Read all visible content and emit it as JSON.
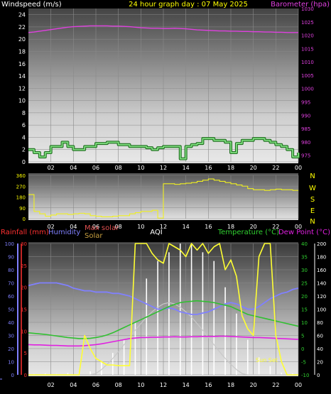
{
  "header": {
    "left_label": "Windspeed (m/s)",
    "title": "24 hour graph day : 07 May 2025",
    "right_label": "Barometer (hpa)"
  },
  "colors": {
    "wind": "#7ddc7d",
    "barometer": "#e040e0",
    "direction": "#f0f020",
    "rain": "#ff3030",
    "humidity": "#8080ff",
    "max_solar": "#c8c8c8",
    "solar": "#ffff33",
    "temperature": "#30c030",
    "dew_point": "#e020e0",
    "uv": "#ffffff",
    "title": "#ffff00"
  },
  "chart_data": [
    {
      "type": "line",
      "name": "wind-barometer",
      "x_ticks": [
        "02",
        "04",
        "06",
        "08",
        "10",
        "12",
        "14",
        "16",
        "18",
        "20",
        "22",
        "00"
      ],
      "y_left": {
        "label": "Windspeed (m/s)",
        "range": [
          0,
          25
        ],
        "ticks": [
          0,
          2,
          4,
          6,
          8,
          10,
          12,
          14,
          16,
          18,
          20,
          22,
          24
        ]
      },
      "y_right": {
        "label": "Barometer (hpa)",
        "range": [
          972.5,
          1030
        ],
        "ticks": [
          975,
          980,
          985,
          990,
          995,
          1000,
          1005,
          1010,
          1015,
          1020,
          1025,
          1030
        ]
      },
      "series": [
        {
          "name": "Windspeed",
          "axis": "left",
          "color_key": "wind",
          "values": [
            2.0,
            1.5,
            0.8,
            1.5,
            2.5,
            2.5,
            3.2,
            2.5,
            2.0,
            2.0,
            2.5,
            2.5,
            3.0,
            3.0,
            3.2,
            3.2,
            2.8,
            2.8,
            2.5,
            2.5,
            2.5,
            2.3,
            2.0,
            2.3,
            2.5,
            2.5,
            2.5,
            0.5,
            2.5,
            2.8,
            3.0,
            3.8,
            3.8,
            3.5,
            3.5,
            3.2,
            1.5,
            3.0,
            3.5,
            3.5,
            3.8,
            3.8,
            3.5,
            3.2,
            2.8,
            2.5,
            2.0,
            0.8,
            1.5
          ]
        },
        {
          "name": "Barometer",
          "axis": "right",
          "color_key": "barometer",
          "values": [
            1021.0,
            1021.2,
            1021.5,
            1021.8,
            1022.1,
            1022.4,
            1022.7,
            1023.0,
            1023.2,
            1023.3,
            1023.4,
            1023.5,
            1023.5,
            1023.5,
            1023.5,
            1023.4,
            1023.4,
            1023.3,
            1023.2,
            1023.0,
            1022.8,
            1022.7,
            1022.6,
            1022.6,
            1022.5,
            1022.5,
            1022.6,
            1022.5,
            1022.4,
            1022.2,
            1022.0,
            1021.9,
            1021.8,
            1021.7,
            1021.6,
            1021.6,
            1021.5,
            1021.5,
            1021.4,
            1021.4,
            1021.3,
            1021.3,
            1021.2,
            1021.2,
            1021.1,
            1021.1,
            1021.0,
            1021.0,
            1021.0
          ]
        }
      ]
    },
    {
      "type": "line",
      "name": "wind-direction",
      "x_ticks": [
        "02",
        "04",
        "06",
        "08",
        "10",
        "12",
        "14",
        "16",
        "18",
        "20",
        "22",
        "00"
      ],
      "y_left": {
        "range": [
          0,
          360
        ],
        "ticks": [
          0,
          90,
          180,
          270,
          360
        ]
      },
      "right_axis_labels": [
        "N",
        "W",
        "S",
        "E",
        "N"
      ],
      "series": [
        {
          "name": "Wind direction",
          "axis": "left",
          "color_key": "direction",
          "values": [
            200,
            60,
            40,
            20,
            30,
            40,
            40,
            35,
            40,
            45,
            40,
            25,
            20,
            15,
            15,
            20,
            25,
            25,
            40,
            50,
            60,
            60,
            70,
            5,
            290,
            290,
            285,
            290,
            295,
            300,
            310,
            320,
            330,
            320,
            310,
            300,
            290,
            280,
            270,
            250,
            240,
            240,
            235,
            240,
            245,
            240,
            240,
            235,
            235
          ]
        }
      ]
    },
    {
      "type": "line",
      "name": "rain-humidity-solar-temp",
      "legend": [
        "Rainfall (mm)",
        "Humidity",
        "Max solar",
        "Solar",
        "AQI",
        "Temperature (°C)",
        "Dew Point (°C)"
      ],
      "x_ticks": [
        "02",
        "04",
        "06",
        "08",
        "10",
        "12",
        "14",
        "16",
        "18",
        "20",
        "22",
        "00"
      ],
      "y_rain": {
        "label": "Rainfall (mm)",
        "range": [
          0,
          30
        ],
        "ticks": [
          0,
          5,
          10,
          15,
          20,
          25,
          30
        ]
      },
      "y_humidity": {
        "label": "Humidity",
        "range": [
          0,
          100
        ],
        "ticks": [
          0,
          10,
          20,
          30,
          40,
          50,
          60,
          70,
          80,
          90,
          100
        ]
      },
      "y_temp": {
        "label": "Temperature (°C)",
        "range": [
          -10,
          40
        ],
        "ticks": [
          -10,
          -5,
          0,
          5,
          10,
          15,
          20,
          25,
          30,
          35,
          40
        ]
      },
      "y_solar": {
        "range": [
          0,
          200
        ],
        "ticks": [
          0,
          20,
          40,
          60,
          80,
          100,
          120,
          140,
          160,
          180,
          200
        ]
      },
      "annotation": "Sun Set",
      "series": [
        {
          "name": "Humidity",
          "axis": "humidity",
          "color_key": "humidity",
          "values": [
            68,
            69,
            70,
            70,
            70,
            70,
            69,
            68,
            66,
            65,
            64,
            64,
            63,
            63,
            63,
            62,
            62,
            61,
            60,
            58,
            56,
            54,
            52,
            50,
            50,
            51,
            50,
            48,
            47,
            46,
            46,
            47,
            48,
            50,
            52,
            54,
            55,
            54,
            52,
            50,
            50,
            52,
            55,
            58,
            60,
            62,
            63,
            65,
            66
          ]
        },
        {
          "name": "Temperature",
          "axis": "temp",
          "color_key": "temperature",
          "values": [
            6,
            5.8,
            5.6,
            5.4,
            5.1,
            4.8,
            4.5,
            4.2,
            4.0,
            3.8,
            3.8,
            3.9,
            4.2,
            4.6,
            5.2,
            6.0,
            7.0,
            8.0,
            9.0,
            10.0,
            11.0,
            12.0,
            13.0,
            14.0,
            15.0,
            16.0,
            16.8,
            17.5,
            17.8,
            18.0,
            18.2,
            18.0,
            17.8,
            17.5,
            17.0,
            16.5,
            16.0,
            15.0,
            14.0,
            13.0,
            12.5,
            12.0,
            11.5,
            11.0,
            10.5,
            10.0,
            9.5,
            9.0,
            8.5
          ]
        },
        {
          "name": "Dew Point",
          "axis": "temp",
          "color_key": "dew_point",
          "values": [
            1.5,
            1.4,
            1.4,
            1.3,
            1.2,
            1.2,
            1.1,
            1.0,
            1.0,
            1.0,
            1.1,
            1.3,
            1.5,
            1.8,
            2.2,
            2.6,
            3.0,
            3.4,
            3.8,
            4.0,
            4.2,
            4.2,
            4.3,
            4.3,
            4.4,
            4.4,
            4.5,
            4.4,
            4.4,
            4.5,
            4.5,
            4.6,
            4.6,
            4.6,
            4.7,
            4.7,
            4.6,
            4.5,
            4.4,
            4.3,
            4.2,
            4.2,
            4.1,
            4.0,
            3.9,
            3.8,
            3.7,
            3.6,
            3.5
          ]
        },
        {
          "name": "Max solar",
          "axis": "solar",
          "color_key": "max_solar",
          "values": [
            0,
            0,
            0,
            0,
            0,
            0,
            0,
            0,
            0,
            0,
            0,
            0,
            2,
            8,
            16,
            25,
            35,
            46,
            57,
            68,
            78,
            88,
            96,
            103,
            108,
            110,
            108,
            103,
            96,
            88,
            78,
            68,
            57,
            46,
            35,
            25,
            16,
            8,
            2,
            0,
            0,
            0,
            0,
            0,
            0,
            0,
            0,
            0,
            0
          ]
        },
        {
          "name": "Solar",
          "axis": "solar",
          "color_key": "solar",
          "values": [
            0,
            0,
            0,
            0,
            0,
            0,
            0,
            0,
            0,
            0,
            60,
            40,
            25,
            20,
            15,
            15,
            14,
            14,
            14,
            200,
            200,
            200,
            185,
            175,
            170,
            200,
            195,
            190,
            180,
            200,
            190,
            200,
            185,
            195,
            200,
            160,
            175,
            150,
            90,
            70,
            60,
            180,
            200,
            200,
            60,
            20,
            0,
            0,
            0
          ]
        },
        {
          "name": "UV",
          "axis": "rain",
          "color_key": "uv",
          "values": [
            0,
            0.2,
            0,
            0.3,
            0,
            0.2,
            0,
            0.4,
            0,
            0.5,
            0,
            0.8,
            0,
            3,
            0,
            5,
            0,
            8,
            0,
            12,
            0,
            22,
            0,
            26,
            0,
            28,
            0,
            30,
            0,
            30,
            0,
            28,
            0,
            26,
            0,
            20,
            0,
            14,
            0,
            8,
            0,
            4,
            0,
            2,
            0,
            0.5,
            0,
            0.3,
            0
          ]
        }
      ]
    }
  ]
}
